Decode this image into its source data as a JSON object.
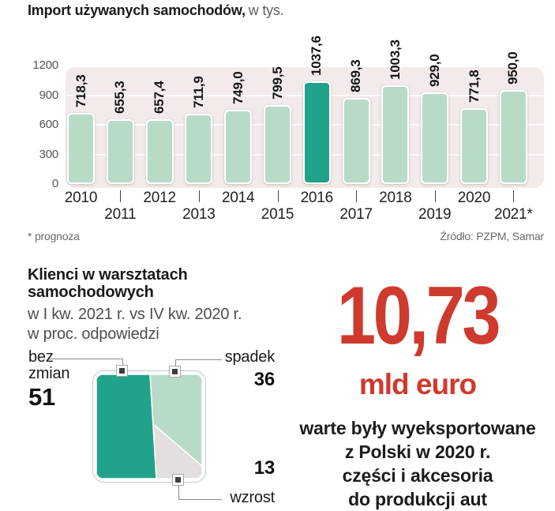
{
  "import_chart": {
    "title_bold": "Import używanych samochodów,",
    "title_light": "w tys.",
    "footnote": "* prognoza",
    "source": "Źródło: PZPM, Samar"
  },
  "chart_data": [
    {
      "type": "bar",
      "title": "Import używanych samochodów, w tys.",
      "categories": [
        "2010",
        "2011",
        "2012",
        "2013",
        "2014",
        "2015",
        "2016",
        "2017",
        "2018",
        "2019",
        "2020",
        "2021*"
      ],
      "values": [
        718.3,
        655.3,
        657.4,
        711.9,
        749.0,
        799.5,
        1037.6,
        869.3,
        1003.3,
        929.0,
        771.8,
        950.0
      ],
      "value_labels": [
        "718,3",
        "655,3",
        "657,4",
        "711,9",
        "749,0",
        "799,5",
        "1037,6",
        "869,3",
        "1003,3",
        "929,0",
        "771,8",
        "950,0"
      ],
      "highlight_index": 6,
      "ylim": [
        0,
        1200
      ],
      "yticks": [
        0,
        300,
        600,
        900,
        1200
      ],
      "grid": true,
      "legend": "none",
      "bar_color": "#b8dbc8",
      "highlight_color": "#20a28b",
      "panel_color": "#f3eaea",
      "footnote": "* prognoza",
      "source": "Źródło: PZPM, Samar"
    },
    {
      "type": "pie",
      "title": "Klienci w warsztatach samochodowych",
      "subtitle": "w I kw. 2021 r. vs IV kw. 2020 r. w proc. odpowiedzi",
      "segments": [
        {
          "label": "bez zmian",
          "value": 51,
          "color": "#20a28b"
        },
        {
          "label": "spadek",
          "value": 36,
          "color": "#b8dbc8"
        },
        {
          "label": "wzrost",
          "value": 13,
          "color": "#e4dfdf"
        }
      ]
    }
  ],
  "workshop_chart": {
    "title_line1": "Klienci w warsztatach",
    "title_line2": "samochodowych",
    "subtitle_line1": "w I kw. 2021 r. vs IV kw. 2020 r.",
    "subtitle_line2": "w proc. odpowiedzi",
    "labels": {
      "bez_line1": "bez",
      "bez_line2": "zmian",
      "bez_value": "51",
      "spadek_label": "spadek",
      "spadek_value": "36",
      "wzrost_label": "wzrost",
      "wzrost_value": "13"
    }
  },
  "export_stat": {
    "value": "10,73",
    "unit": "mld euro",
    "lines": [
      "warte były wyeksportowane",
      "z Polski w 2020 r.",
      "części i akcesoria",
      "do produkcji aut"
    ],
    "accent_color": "#cf3a2e"
  }
}
